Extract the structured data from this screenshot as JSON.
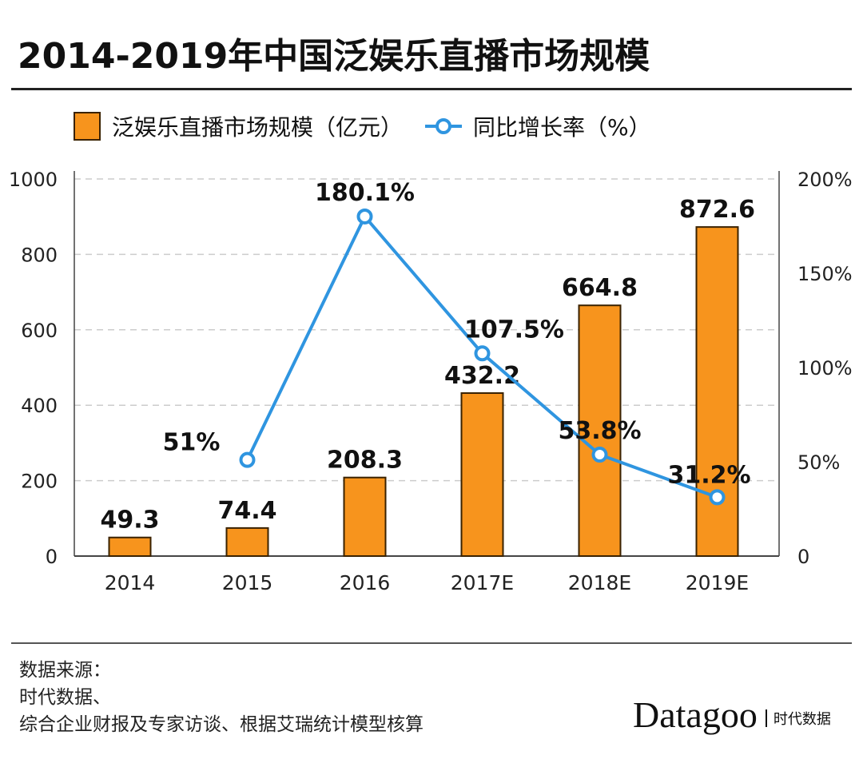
{
  "title": "2014-2019年中国泛娱乐直播市场规模",
  "legend": {
    "bar_label": "泛娱乐直播市场规模（亿元）",
    "line_label": "同比增长率（%）"
  },
  "colors": {
    "bar": "#f7941d",
    "bar_edge": "#3a2200",
    "line": "#2f95e0",
    "grid": "#cccccc"
  },
  "chart_data": {
    "type": "bar+line",
    "categories": [
      "2014",
      "2015",
      "2016",
      "2017E",
      "2018E",
      "2019E"
    ],
    "series": [
      {
        "name": "泛娱乐直播市场规模（亿元）",
        "type": "bar",
        "axis": "left",
        "values": [
          49.3,
          74.4,
          208.3,
          432.2,
          664.8,
          872.6
        ],
        "labels": [
          "49.3",
          "74.4",
          "208.3",
          "432.2",
          "664.8",
          "872.6"
        ]
      },
      {
        "name": "同比增长率（%）",
        "type": "line",
        "axis": "right",
        "values": [
          null,
          51,
          180.1,
          107.5,
          53.8,
          31.2
        ],
        "labels": [
          "",
          "51%",
          "180.1%",
          "107.5%",
          "53.8%",
          "31.2%"
        ]
      }
    ],
    "y_left": {
      "range": [
        0,
        1000
      ],
      "ticks": [
        "0",
        "200",
        "400",
        "600",
        "800",
        "1000"
      ]
    },
    "y_right": {
      "range": [
        0,
        200
      ],
      "ticks": [
        "0",
        "50%",
        "100%",
        "150%",
        "200%"
      ]
    },
    "grid": "horizontal dashed",
    "legend_position": "top-left"
  },
  "footer": {
    "source_lines": [
      "数据来源：",
      "时代数据、",
      "综合企业财报及专家访谈、根据艾瑞统计模型核算"
    ],
    "logo_brand": "Datagoo",
    "logo_cn": "时代数据"
  }
}
